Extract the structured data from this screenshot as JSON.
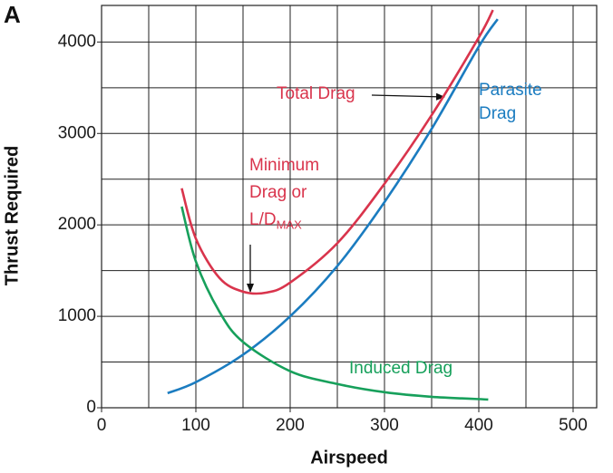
{
  "chart_data": {
    "type": "line",
    "panel_label": "A",
    "xlabel": "Airspeed",
    "ylabel": "Thrust Required",
    "xlim": [
      0,
      525
    ],
    "ylim": [
      0,
      4400
    ],
    "xticks": [
      0,
      100,
      200,
      300,
      400,
      500
    ],
    "yticks": [
      0,
      1000,
      2000,
      3000,
      4000
    ],
    "grid": true,
    "xgrid": [
      50,
      100,
      150,
      200,
      250,
      300,
      350,
      400,
      450,
      500
    ],
    "ygrid": [
      500,
      1000,
      1500,
      2000,
      2500,
      3000,
      3500,
      4000
    ],
    "series": [
      {
        "name": "Total Drag",
        "color": "#d9344c",
        "x": [
          85,
          100,
          125,
          150,
          175,
          200,
          250,
          300,
          350,
          400,
          415
        ],
        "values": [
          2400,
          1850,
          1420,
          1270,
          1260,
          1370,
          1800,
          2450,
          3200,
          4050,
          4350
        ]
      },
      {
        "name": "Parasite Drag",
        "color": "#1b7cc0",
        "x": [
          70,
          100,
          150,
          200,
          250,
          300,
          350,
          400,
          420
        ],
        "values": [
          160,
          280,
          580,
          1000,
          1550,
          2250,
          3050,
          3950,
          4250
        ]
      },
      {
        "name": "Induced Drag",
        "color": "#17a05b",
        "x": [
          85,
          100,
          125,
          150,
          200,
          250,
          300,
          350,
          410
        ],
        "values": [
          2200,
          1600,
          1050,
          720,
          400,
          260,
          170,
          120,
          90
        ]
      }
    ],
    "annotation": {
      "lines": [
        "Minimum",
        "Drag or",
        "L/D"
      ],
      "subscript": "MAX"
    }
  }
}
